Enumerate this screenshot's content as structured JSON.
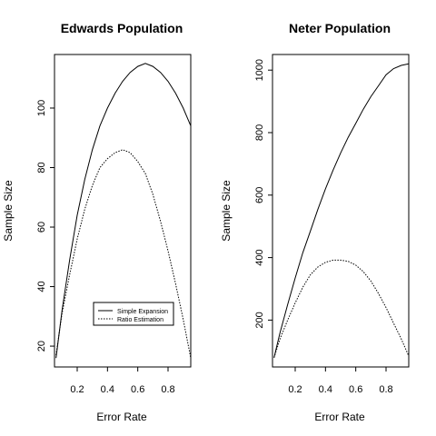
{
  "chart_data": [
    {
      "type": "line",
      "title": "Edwards Population",
      "xlabel": "Error Rate",
      "ylabel": "Sample Size",
      "xlim": [
        0.05,
        0.95
      ],
      "ylim": [
        13,
        118
      ],
      "xticks": [
        0.2,
        0.4,
        0.6,
        0.8
      ],
      "yticks": [
        20,
        40,
        60,
        80,
        100
      ],
      "grid": false,
      "legend_position": "bottom-right",
      "series": [
        {
          "name": "Simple Expansion",
          "style": "solid",
          "x": [
            0.06,
            0.1,
            0.15,
            0.2,
            0.25,
            0.3,
            0.35,
            0.4,
            0.45,
            0.5,
            0.55,
            0.6,
            0.65,
            0.7,
            0.75,
            0.8,
            0.85,
            0.9,
            0.95
          ],
          "values": [
            16,
            32,
            49,
            64,
            76,
            86,
            94,
            100,
            105,
            109,
            112,
            114,
            115,
            114,
            112,
            109,
            105,
            100,
            94
          ]
        },
        {
          "name": "Ratio Estimation",
          "style": "dotted",
          "x": [
            0.06,
            0.1,
            0.15,
            0.2,
            0.25,
            0.3,
            0.35,
            0.4,
            0.45,
            0.5,
            0.55,
            0.6,
            0.65,
            0.7,
            0.75,
            0.8,
            0.85,
            0.9,
            0.95
          ],
          "values": [
            17,
            31,
            44,
            56,
            66,
            74,
            80,
            83,
            85,
            86,
            85,
            82,
            78,
            71,
            62,
            52,
            41,
            29,
            16
          ]
        }
      ]
    },
    {
      "type": "line",
      "title": "Neter Population",
      "xlabel": "Error Rate",
      "ylabel": "Sample Size",
      "xlim": [
        0.05,
        0.95
      ],
      "ylim": [
        50,
        1050
      ],
      "xticks": [
        0.2,
        0.4,
        0.6,
        0.8
      ],
      "yticks": [
        200,
        400,
        600,
        800,
        1000
      ],
      "grid": false,
      "series": [
        {
          "style": "solid",
          "x": [
            0.06,
            0.1,
            0.15,
            0.2,
            0.25,
            0.3,
            0.35,
            0.4,
            0.45,
            0.5,
            0.55,
            0.6,
            0.65,
            0.7,
            0.75,
            0.8,
            0.85,
            0.9,
            0.95
          ],
          "values": [
            80,
            160,
            250,
            335,
            415,
            485,
            555,
            620,
            680,
            735,
            785,
            830,
            875,
            915,
            950,
            985,
            1005,
            1015,
            1020
          ]
        },
        {
          "style": "dotted",
          "x": [
            0.06,
            0.1,
            0.15,
            0.2,
            0.25,
            0.3,
            0.35,
            0.4,
            0.45,
            0.5,
            0.55,
            0.6,
            0.65,
            0.7,
            0.75,
            0.8,
            0.85,
            0.9,
            0.95
          ],
          "values": [
            80,
            140,
            200,
            255,
            305,
            345,
            370,
            385,
            392,
            392,
            388,
            376,
            355,
            325,
            285,
            240,
            190,
            140,
            85
          ]
        }
      ]
    }
  ]
}
